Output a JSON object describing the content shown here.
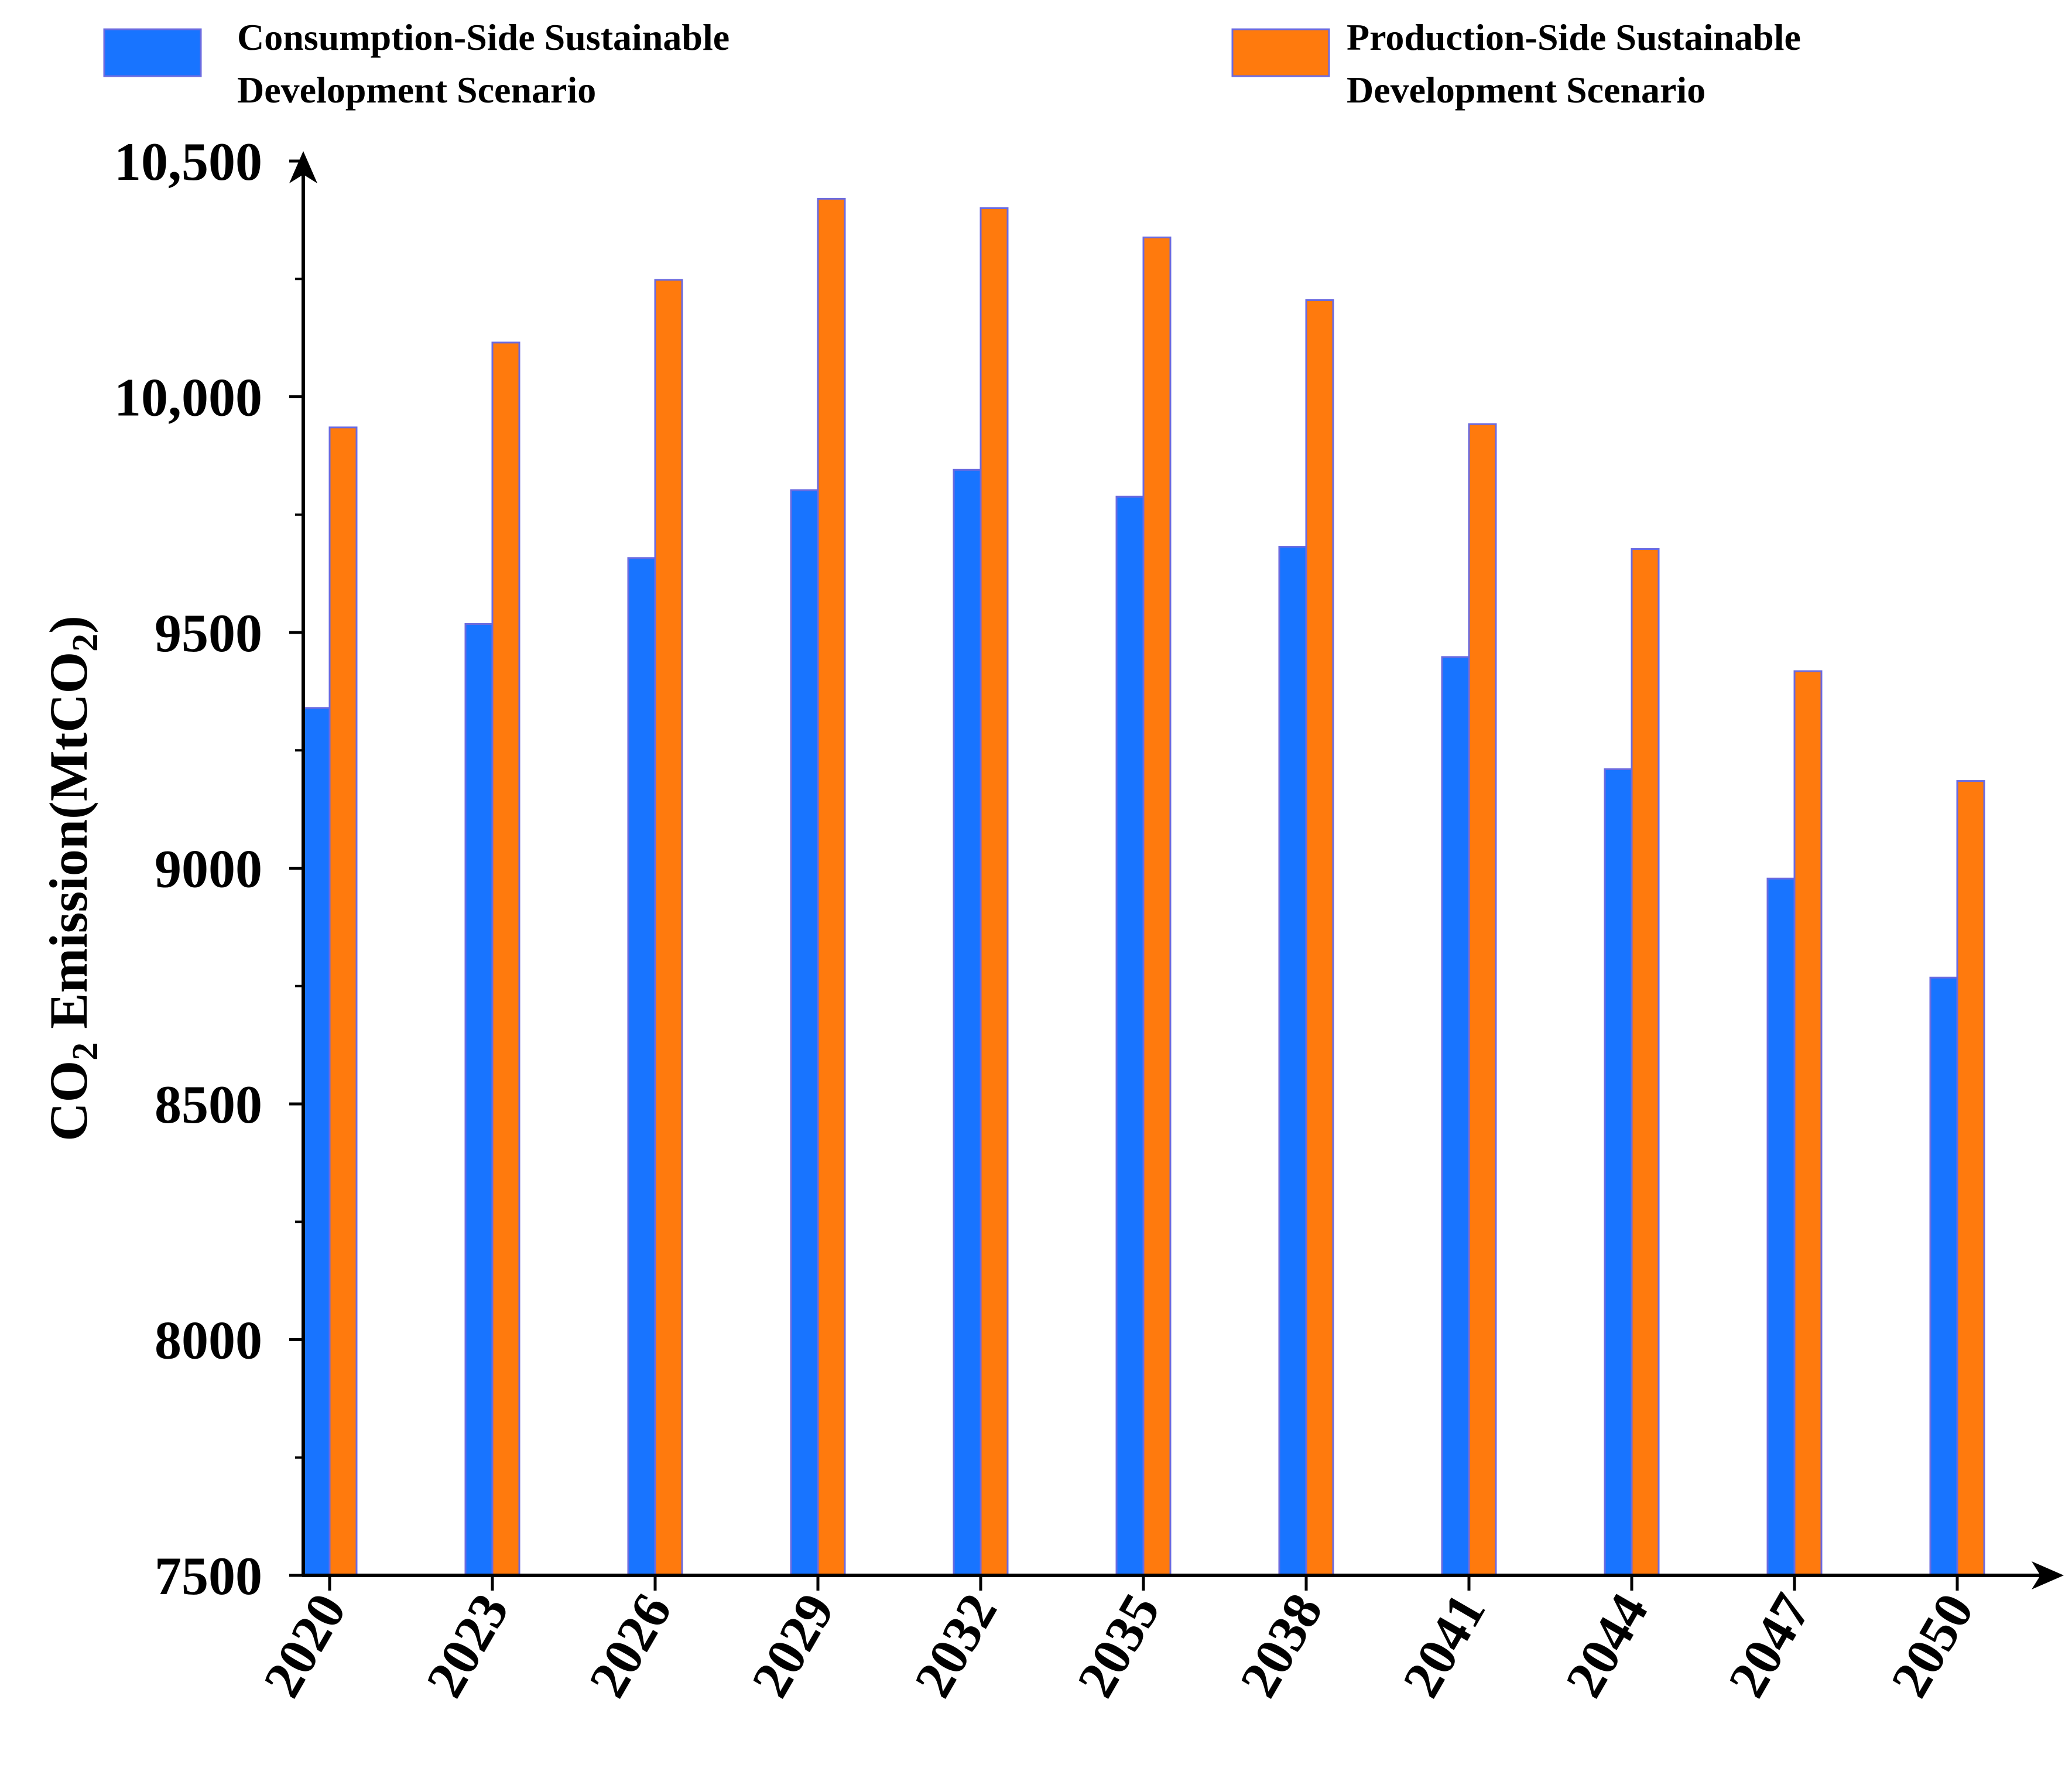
{
  "chart_data": {
    "type": "bar",
    "title": "",
    "xlabel": "",
    "ylabel": {
      "prefix": "CO",
      "sub": "2",
      "middle": " Emission(MtCO",
      "sub2": "2",
      "suffix": ")"
    },
    "ylim": [
      7500,
      10500
    ],
    "yticks": [
      {
        "value": 10500,
        "label": "10,500"
      },
      {
        "value": 10000,
        "label": "10,000"
      },
      {
        "value": 9500,
        "label": "9500"
      },
      {
        "value": 9000,
        "label": "9000"
      },
      {
        "value": 8500,
        "label": "8500"
      },
      {
        "value": 8000,
        "label": "8000"
      },
      {
        "value": 7500,
        "label": "7500"
      }
    ],
    "categories": [
      "2020",
      "2023",
      "2026",
      "2029",
      "2032",
      "2035",
      "2038",
      "2041",
      "2044",
      "2047",
      "2050"
    ],
    "series": [
      {
        "name": "Consumption-Side Sustainable Development Scenario",
        "legend_lines": [
          "Consumption-Side Sustainable",
          "Development Scenario"
        ],
        "color": "#1874FF",
        "values": [
          9340,
          9518,
          9658,
          9802,
          9845,
          9788,
          9682,
          9448,
          9210,
          8978,
          8768
        ]
      },
      {
        "name": "Production-Side Sustainable Development Scenario",
        "legend_lines": [
          "Production-Side Sustainable",
          "Development Scenario"
        ],
        "color": "#FF7A0D",
        "values": [
          9935,
          10115,
          10248,
          10420,
          10400,
          10338,
          10205,
          9942,
          9677,
          9418,
          9185
        ]
      }
    ],
    "legend_position": "top",
    "grid": false,
    "bar_stroke_color": "#6B6BE0",
    "axis_color": "#000000"
  }
}
